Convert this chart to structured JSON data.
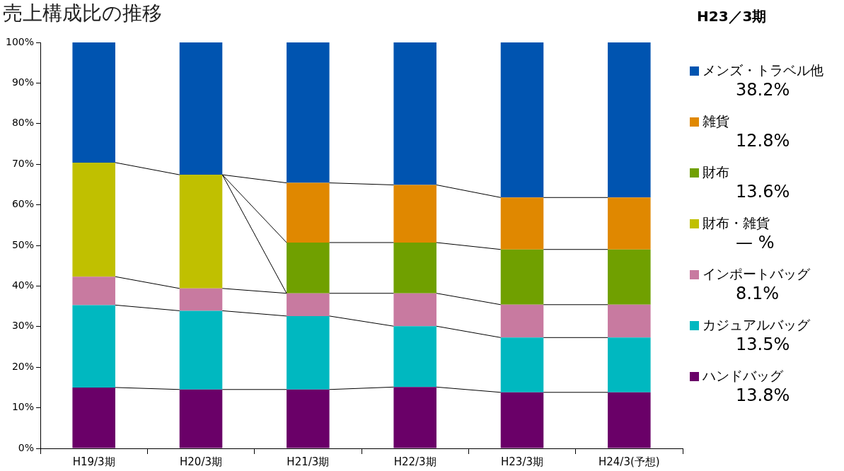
{
  "chart_data": {
    "type": "bar",
    "title": "売上構成比の推移",
    "legend_title": "H23／3期",
    "stacked": true,
    "legend": "right",
    "grid": false,
    "categories": [
      "H19/3期",
      "H20/3期",
      "H21/3期",
      "H22/3期",
      "H23/3期",
      "H24/3(予想)"
    ],
    "ylim": [
      0,
      100
    ],
    "yticks": [
      {
        "value": 0,
        "label": "0%"
      },
      {
        "value": 10,
        "label": "10%"
      },
      {
        "value": 20,
        "label": "20%"
      },
      {
        "value": 30,
        "label": "30%"
      },
      {
        "value": 40,
        "label": "40%"
      },
      {
        "value": 50,
        "label": "50%"
      },
      {
        "value": 60,
        "label": "60%"
      },
      {
        "value": 70,
        "label": "70%"
      },
      {
        "value": 80,
        "label": "80%"
      },
      {
        "value": 90,
        "label": "90%"
      },
      {
        "value": 100,
        "label": "100%"
      }
    ],
    "series": [
      {
        "name": "ハンドバッグ",
        "color": "#6a0068",
        "values": [
          15,
          14.5,
          14.5,
          15.1,
          13.8,
          13.8
        ]
      },
      {
        "name": "カジュアルバッグ",
        "color": "#00b8c0",
        "values": [
          20.3,
          19.4,
          18.1,
          15,
          13.5,
          13.5
        ]
      },
      {
        "name": "インポートバッグ",
        "color": "#c87aa0",
        "values": [
          7,
          5.5,
          5.6,
          8.1,
          8.1,
          8.1
        ]
      },
      {
        "name": "財布・雑貨",
        "color": "#c0c000",
        "values": [
          28.1,
          28,
          null,
          null,
          null,
          null
        ]
      },
      {
        "name": "財布",
        "color": "#70a000",
        "values": [
          null,
          null,
          12.5,
          12.5,
          13.6,
          13.6
        ]
      },
      {
        "name": "雑貨",
        "color": "#e08800",
        "values": [
          null,
          null,
          14.7,
          14.2,
          12.8,
          12.8
        ]
      },
      {
        "name": "メンズ・トラベル他",
        "color": "#0054b0",
        "values": [
          29.6,
          32.6,
          34.6,
          35.1,
          38.2,
          38.2
        ]
      }
    ],
    "annotations": [
      "38.2%",
      "12.8%",
      "13.6%",
      "— %",
      "8.1%",
      "13.5%",
      "13.8%"
    ]
  }
}
